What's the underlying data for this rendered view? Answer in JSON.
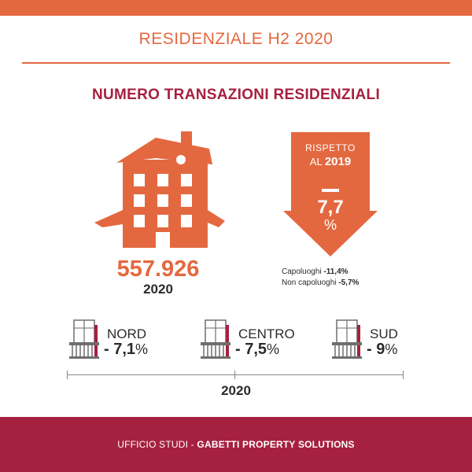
{
  "header": {
    "title": "RESIDENZIALE H2 2020",
    "accent_color": "#e4683f"
  },
  "section": {
    "title": "NUMERO TRANSAZIONI RESIDENZIALI",
    "title_color": "#a6203f"
  },
  "total": {
    "value": "557.926",
    "year": "2020",
    "icon": "house-icon"
  },
  "change": {
    "line1": "RISPETTO",
    "line2_prefix": "AL",
    "line2_year": "2019",
    "sign": "–",
    "value": "7,7",
    "unit": "%",
    "icon": "down-arrow-icon",
    "breakdown": [
      {
        "label": "Capoluoghi",
        "value": "-11,4%"
      },
      {
        "label": "Non capoluoghi",
        "value": "-5,7%"
      }
    ]
  },
  "regions": [
    {
      "name": "NORD",
      "value": "- 7,1",
      "unit": "%",
      "icon": "balcony-icon"
    },
    {
      "name": "CENTRO",
      "value": "- 7,5",
      "unit": "%",
      "icon": "balcony-icon"
    },
    {
      "name": "SUD",
      "value": "- 9",
      "unit": "%",
      "icon": "balcony-icon"
    }
  ],
  "timeline": {
    "year": "2020"
  },
  "footer": {
    "prefix": "UFFICIO STUDI - ",
    "brand": "GABETTI PROPERTY SOLUTIONS",
    "color": "#a6203f"
  }
}
